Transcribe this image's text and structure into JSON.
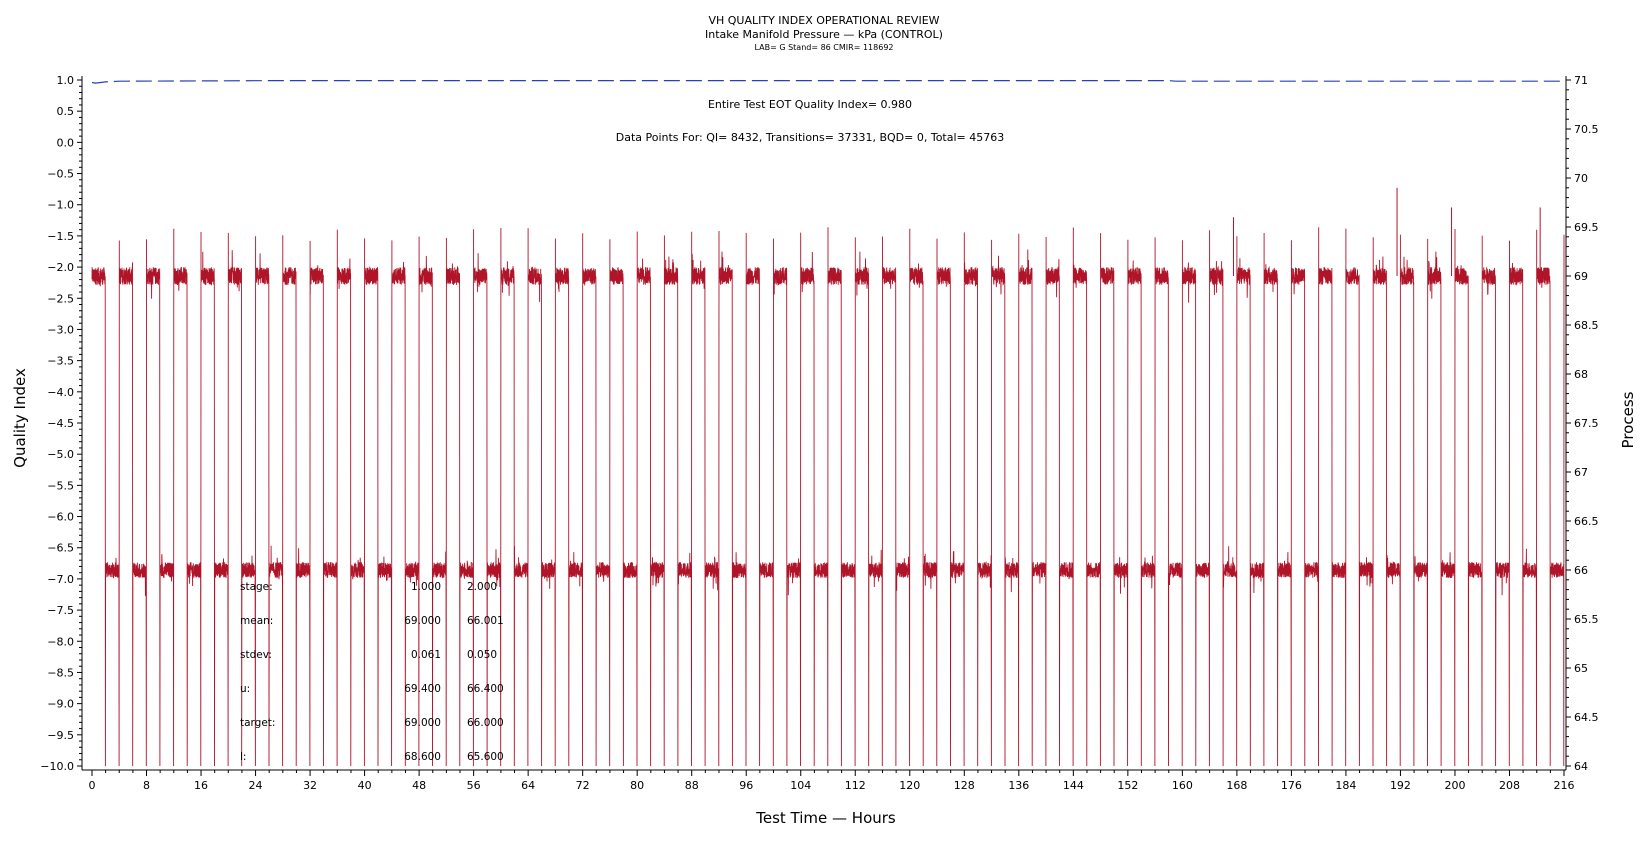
{
  "header": {
    "title": "VH QUALITY INDEX OPERATIONAL REVIEW",
    "subtitle": "Intake Manifold Pressure — kPa (CONTROL)",
    "lab_line": "LAB= G Stand= 86 CMIR= 118692"
  },
  "annotations": {
    "eot": "Entire Test EOT Quality Index=   0.980",
    "points": "Data Points For: QI=  8432, Transitions= 37331, BQD=     0, Total= 45763"
  },
  "stats": [
    {
      "label": "stage:",
      "v1": "1.000",
      "v2": "2.000"
    },
    {
      "label": "mean:",
      "v1": "69.000",
      "v2": "66.001"
    },
    {
      "label": "stdev:",
      "v1": "0.061",
      "v2": "0.050"
    },
    {
      "label": "u:",
      "v1": "69.400",
      "v2": "66.400"
    },
    {
      "label": "target:",
      "v1": "69.000",
      "v2": "66.000"
    },
    {
      "label": "l:",
      "v1": "68.600",
      "v2": "65.600"
    }
  ],
  "colors": {
    "quality_index": "#2b3fb8",
    "process": "#b01428"
  },
  "chart_data": {
    "type": "line",
    "title": "VH QUALITY INDEX OPERATIONAL REVIEW",
    "xlabel": "Test Time — Hours",
    "ylabel": "Quality Index",
    "y2label": "Process",
    "xlim": [
      0,
      216
    ],
    "ylim": [
      -10,
      1
    ],
    "y2lim": [
      64,
      71
    ],
    "x_ticks": [
      0,
      8,
      16,
      24,
      32,
      40,
      48,
      56,
      64,
      72,
      80,
      88,
      96,
      104,
      112,
      120,
      128,
      136,
      144,
      152,
      160,
      168,
      176,
      184,
      192,
      200,
      208,
      216
    ],
    "y_ticks": [
      "1.0",
      "0.5",
      "0.0",
      "-0.5",
      "-1.0",
      "-1.5",
      "-2.0",
      "-2.5",
      "-3.0",
      "-3.5",
      "-4.0",
      "-4.5",
      "-5.0",
      "-5.5",
      "-6.0",
      "-6.5",
      "-7.0",
      "-7.5",
      "-8.0",
      "-8.5",
      "-9.0",
      "-9.5",
      "-10.0"
    ],
    "y2_ticks": [
      "71",
      "70.5",
      "70",
      "69.5",
      "69",
      "68.5",
      "68",
      "67.5",
      "67",
      "66.5",
      "66",
      "65.5",
      "65",
      "64.5",
      "64"
    ],
    "grid": false,
    "series": [
      {
        "axis": "left",
        "style": "dashed",
        "x": [
          0,
          0.5,
          2,
          4,
          28,
          158,
          159,
          216
        ],
        "y": [
          0.96,
          0.95,
          0.97,
          0.98,
          0.99,
          0.99,
          0.98,
          0.98
        ]
      },
      {
        "axis": "right",
        "style": "solid",
        "description_pattern": {
          "cycle_hours": 4,
          "stage_1_level": 69.0,
          "stage_2_level": 66.0,
          "transition_dip": 64.0
        },
        "peaks_x": [
          167.5,
          191.5,
          199.5,
          212.5
        ],
        "peaks_y": [
          69.6,
          69.9,
          69.7,
          69.7
        ]
      }
    ]
  }
}
